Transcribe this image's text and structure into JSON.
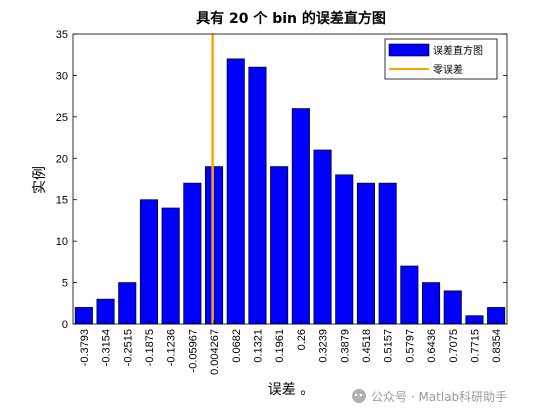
{
  "chart_data": {
    "type": "bar",
    "title": "具有 20 个 bin 的误差直方图",
    "xlabel": "误差 。",
    "ylabel": "实例",
    "ylim": [
      0,
      35
    ],
    "yticks": [
      0,
      5,
      10,
      15,
      20,
      25,
      30,
      35
    ],
    "categories": [
      "-0.3793",
      "-0.3154",
      "-0.2515",
      "-0.1875",
      "-0.1236",
      "-0.05967",
      "0.004267",
      "0.0682",
      "0.1321",
      "0.1961",
      "0.26",
      "0.3239",
      "0.3879",
      "0.4518",
      "0.5157",
      "0.5797",
      "0.6436",
      "0.7075",
      "0.7715",
      "0.8354"
    ],
    "series": [
      {
        "name": "误差直方图",
        "color": "#0000ff",
        "values": [
          2,
          3,
          5,
          15,
          14,
          17,
          19,
          32,
          31,
          19,
          26,
          21,
          18,
          17,
          17,
          7,
          5,
          4,
          1,
          2
        ]
      }
    ],
    "reference_line": {
      "name": "零误差",
      "x": 0,
      "color": "#ffa500"
    },
    "legend": "top-right",
    "grid": false
  },
  "watermark": "公众号 · Matlab科研助手"
}
